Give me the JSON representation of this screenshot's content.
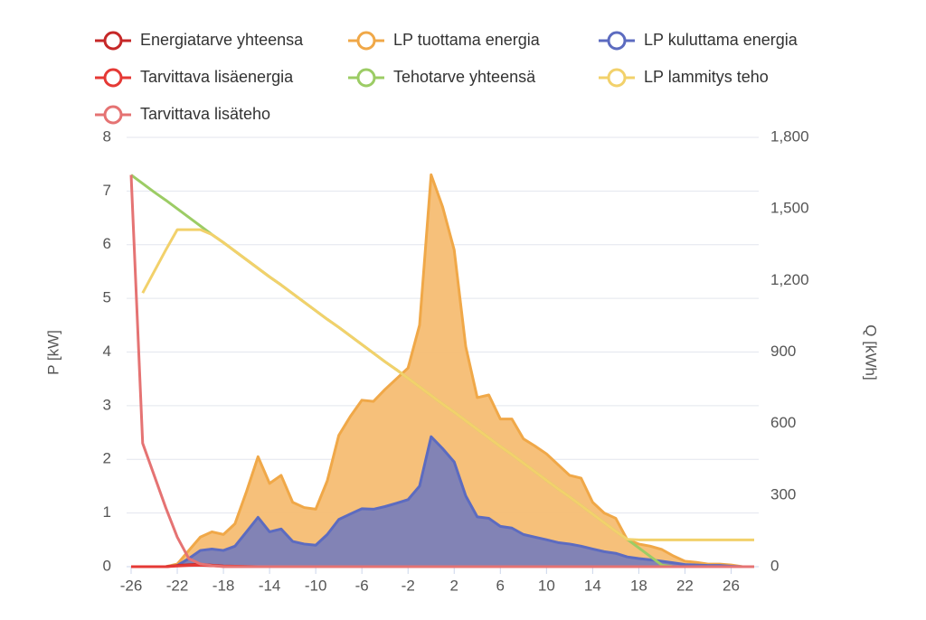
{
  "chart_data": {
    "type": "line",
    "x": [
      -26,
      -25,
      -24,
      -23,
      -22,
      -21,
      -20,
      -19,
      -18,
      -17,
      -16,
      -15,
      -14,
      -13,
      -12,
      -11,
      -10,
      -9,
      -8,
      -7,
      -6,
      -5,
      -4,
      -3,
      -2,
      -1,
      0,
      1,
      2,
      3,
      4,
      5,
      6,
      7,
      8,
      9,
      10,
      11,
      12,
      13,
      14,
      15,
      16,
      17,
      18,
      19,
      20,
      21,
      22,
      23,
      24,
      25,
      26,
      27,
      28
    ],
    "xlim": [
      -26,
      28
    ],
    "xticks": [
      -26,
      -22,
      -18,
      -14,
      -10,
      -6,
      -2,
      2,
      6,
      10,
      14,
      18,
      22,
      26
    ],
    "ylim": [
      0,
      8
    ],
    "yticks": [
      0,
      1,
      2,
      3,
      4,
      5,
      6,
      7,
      8
    ],
    "y2lim": [
      0,
      1800
    ],
    "y2ticks": [
      0,
      {
        "value": 300,
        "label": "300"
      },
      {
        "value": 600,
        "label": "600"
      },
      {
        "value": 900,
        "label": "900"
      },
      {
        "value": 1200,
        "label": "1,200"
      },
      {
        "value": 1500,
        "label": "1,500"
      },
      {
        "value": 1800,
        "label": "1,800"
      }
    ],
    "ylabel": "P [kW]",
    "y2label": "Q [kWh]",
    "grid": true,
    "series": [
      {
        "name": "Energiatarve yhteensa",
        "color": "#c62828",
        "axis": "y2",
        "fill": false,
        "values": [
          0,
          0,
          0,
          0,
          5,
          8,
          10,
          6,
          3,
          2,
          1,
          0,
          0,
          0,
          0,
          0,
          0,
          0,
          0,
          0,
          0,
          0,
          0,
          0,
          0,
          0,
          0,
          0,
          0,
          0,
          0,
          0,
          0,
          0,
          0,
          0,
          0,
          0,
          0,
          0,
          0,
          0,
          0,
          0,
          0,
          0,
          0,
          0,
          0,
          0,
          0,
          0,
          0,
          0,
          0
        ]
      },
      {
        "name": "LP tuottama energia",
        "color": "#f0a848",
        "axis": "y2",
        "fill": true,
        "values": [
          0,
          0,
          0,
          0,
          11,
          68,
          124,
          146,
          135,
          180,
          315,
          461,
          349,
          383,
          270,
          248,
          241,
          360,
          551,
          630,
          698,
          693,
          743,
          788,
          833,
          1013,
          1643,
          1508,
          1328,
          923,
          709,
          720,
          619,
          619,
          536,
          506,
          473,
          428,
          383,
          371,
          270,
          225,
          203,
          113,
          95,
          86,
          72,
          45,
          23,
          18,
          11,
          11,
          7,
          0,
          0
        ]
      },
      {
        "name": "LP kuluttama energia",
        "color": "#5c6bc0",
        "axis": "y2",
        "fill": true,
        "values": [
          0,
          0,
          0,
          0,
          5,
          34,
          68,
          74,
          68,
          86,
          146,
          207,
          146,
          158,
          106,
          95,
          90,
          135,
          198,
          221,
          243,
          241,
          252,
          266,
          281,
          338,
          545,
          495,
          439,
          297,
          209,
          203,
          169,
          162,
          135,
          124,
          113,
          101,
          95,
          86,
          74,
          63,
          56,
          41,
          34,
          29,
          23,
          16,
          9,
          7,
          5,
          5,
          2,
          0,
          0
        ]
      },
      {
        "name": "Tarvittava lisäenergia",
        "color": "#e53935",
        "axis": "y2",
        "fill": false,
        "values": [
          0,
          0,
          0,
          0,
          3,
          5,
          6,
          4,
          2,
          1,
          0,
          0,
          0,
          0,
          0,
          0,
          0,
          0,
          0,
          0,
          0,
          0,
          0,
          0,
          0,
          0,
          0,
          0,
          0,
          0,
          0,
          0,
          0,
          0,
          0,
          0,
          0,
          0,
          0,
          0,
          0,
          0,
          0,
          0,
          0,
          0,
          0,
          0,
          0,
          0,
          0,
          0,
          0,
          0,
          0
        ]
      },
      {
        "name": "Tehotarve yhteensä",
        "color": "#9ccc65",
        "axis": "y",
        "fill": false,
        "values": [
          7.3,
          7.14,
          6.98,
          6.83,
          6.67,
          6.51,
          6.35,
          6.19,
          6.04,
          5.88,
          5.72,
          5.56,
          5.4,
          5.25,
          5.09,
          4.93,
          4.77,
          4.61,
          4.46,
          4.3,
          4.14,
          3.98,
          3.82,
          3.67,
          3.51,
          3.35,
          3.19,
          3.03,
          2.88,
          2.72,
          2.56,
          2.4,
          2.24,
          2.09,
          1.93,
          1.77,
          1.61,
          1.45,
          1.3,
          1.14,
          0.98,
          0.82,
          0.66,
          0.51,
          0.35,
          0.19,
          0.03,
          0,
          0,
          0,
          0,
          0,
          0,
          0,
          0
        ]
      },
      {
        "name": "LP lammitys teho",
        "color": "#f2d16b",
        "axis": "y",
        "fill": false,
        "values": [
          null,
          5.1,
          5.5,
          5.9,
          6.28,
          6.28,
          6.28,
          6.19,
          6.04,
          5.88,
          5.72,
          5.56,
          5.4,
          5.25,
          5.09,
          4.93,
          4.77,
          4.61,
          4.46,
          4.3,
          4.14,
          3.98,
          3.82,
          3.67,
          3.51,
          3.35,
          3.19,
          3.03,
          2.88,
          2.72,
          2.56,
          2.4,
          2.24,
          2.09,
          1.93,
          1.77,
          1.61,
          1.45,
          1.3,
          1.14,
          0.98,
          0.82,
          0.66,
          0.51,
          0.5,
          0.5,
          0.5,
          0.5,
          0.5,
          0.5,
          0.5,
          0.5,
          0.5,
          0.5,
          0.5
        ]
      },
      {
        "name": "Tarvittava lisäteho",
        "color": "#e57373",
        "axis": "y",
        "fill": false,
        "values": [
          7.3,
          2.3,
          1.7,
          1.1,
          0.55,
          0.15,
          0.05,
          0.02,
          0,
          0,
          0,
          0,
          0,
          0,
          0,
          0,
          0,
          0,
          0,
          0,
          0,
          0,
          0,
          0,
          0,
          0,
          0,
          0,
          0,
          0,
          0,
          0,
          0,
          0,
          0,
          0,
          0,
          0,
          0,
          0,
          0,
          0,
          0,
          0,
          0,
          0,
          0,
          0,
          0,
          0,
          0,
          0,
          0,
          0,
          0
        ]
      }
    ]
  }
}
